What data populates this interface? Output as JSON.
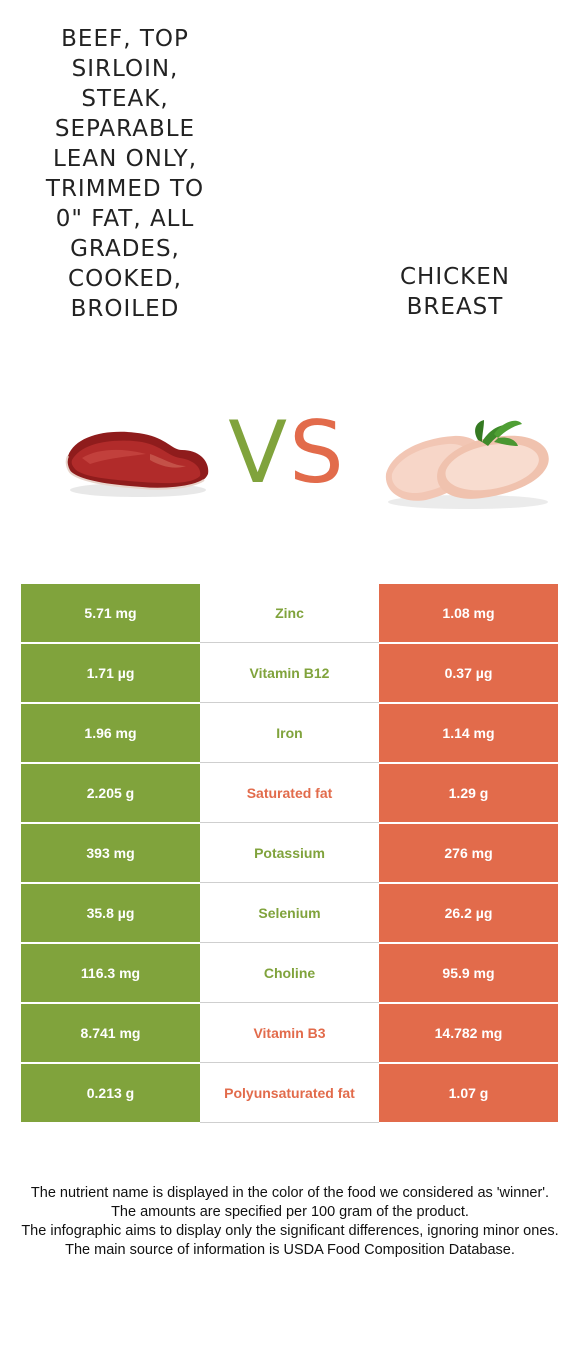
{
  "left_food": {
    "title": "Beef, top sirloin, steak, separable lean only, trimmed to 0\" fat, all grades, cooked, broiled"
  },
  "right_food": {
    "title": "Chicken breast"
  },
  "vs": {
    "v": "V",
    "s": "S"
  },
  "colors": {
    "left": "#80a33c",
    "right": "#e26b4b"
  },
  "rows": [
    {
      "left": "5.71 mg",
      "nutrient": "Zinc",
      "right": "1.08 mg",
      "winner": "left"
    },
    {
      "left": "1.71 µg",
      "nutrient": "Vitamin B12",
      "right": "0.37 µg",
      "winner": "left"
    },
    {
      "left": "1.96 mg",
      "nutrient": "Iron",
      "right": "1.14 mg",
      "winner": "left"
    },
    {
      "left": "2.205 g",
      "nutrient": "Saturated fat",
      "right": "1.29 g",
      "winner": "right"
    },
    {
      "left": "393 mg",
      "nutrient": "Potassium",
      "right": "276 mg",
      "winner": "left"
    },
    {
      "left": "35.8 µg",
      "nutrient": "Selenium",
      "right": "26.2 µg",
      "winner": "left"
    },
    {
      "left": "116.3 mg",
      "nutrient": "Choline",
      "right": "95.9 mg",
      "winner": "left"
    },
    {
      "left": "8.741 mg",
      "nutrient": "Vitamin B3",
      "right": "14.782 mg",
      "winner": "right"
    },
    {
      "left": "0.213 g",
      "nutrient": "Polyunsaturated fat",
      "right": "1.07 g",
      "winner": "right"
    }
  ],
  "footnote": [
    "The nutrient name is displayed in the color of the food we considered as 'winner'.",
    "The amounts are specified per 100 gram of the product.",
    "The infographic aims to display only the significant differences, ignoring minor ones.",
    "The main source of information is USDA Food Composition Database."
  ]
}
